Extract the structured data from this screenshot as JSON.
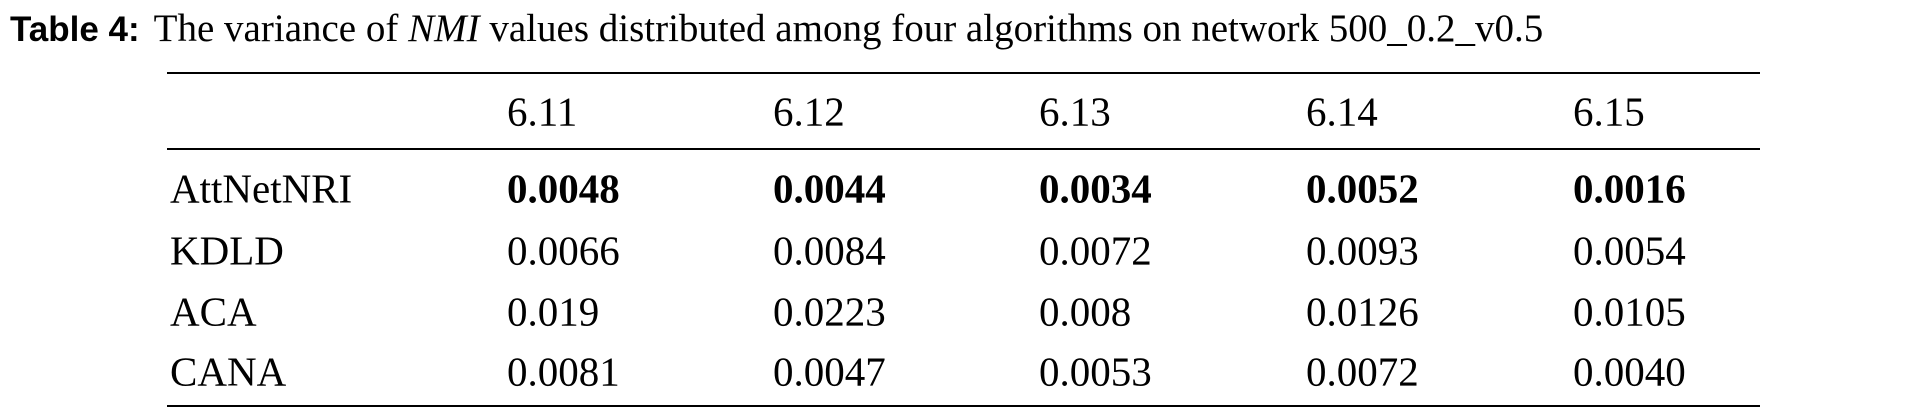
{
  "caption": {
    "label": "Table 4:",
    "text_before": "The variance of ",
    "text_italic": "NMI",
    "text_after": " values distributed among four algorithms on network 500_0.2_v0.5"
  },
  "table": {
    "header": [
      "",
      "6.11",
      "6.12",
      "6.13",
      "6.14",
      "6.15"
    ],
    "rows": [
      [
        "AttNetNRI",
        "0.0048",
        "0.0044",
        "0.0034",
        "0.0052",
        "0.0016"
      ],
      [
        "KDLD",
        "0.0066",
        "0.0084",
        "0.0072",
        "0.0093",
        "0.0054"
      ],
      [
        "ACA",
        "0.019",
        "0.0223",
        "0.008",
        "0.0126",
        "0.0105"
      ],
      [
        "CANA",
        "0.0081",
        "0.0047",
        "0.0053",
        "0.0072",
        "0.0040"
      ]
    ]
  }
}
